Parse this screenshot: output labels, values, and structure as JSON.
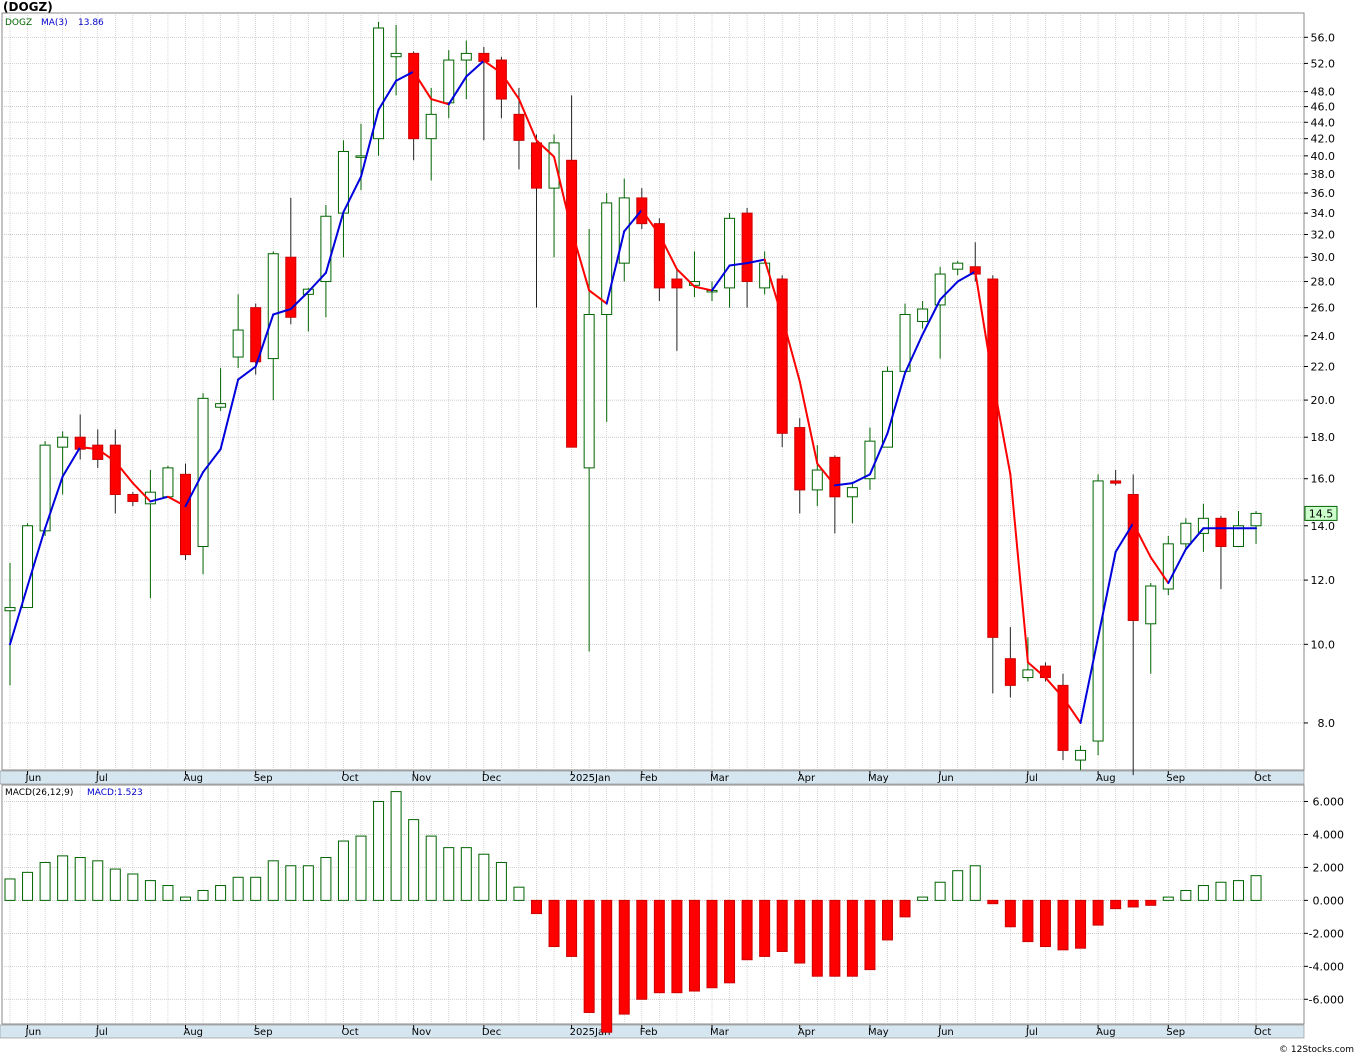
{
  "title": "(DOGZ)",
  "credit": "© 12Stocks.com",
  "price_legend": {
    "symbol": "DOGZ",
    "ma_label": "MA(3)",
    "ma_value": "13.86"
  },
  "macd_legend": {
    "label": "MACD(26,12,9)",
    "value_label": "MACD:1.523"
  },
  "last_price_label": "14.5",
  "colors": {
    "up": "#006400",
    "down": "#ff0000",
    "ma_up": "#0000dd",
    "ma_down": "#ff0000",
    "axis_band": "#d6e6f0",
    "grid": "#bbbbbb"
  },
  "chart_data": [
    {
      "type": "candlestick",
      "scale": "log",
      "y_ticks": [
        "56.0",
        "52.0",
        "48.0",
        "46.0",
        "44.0",
        "42.0",
        "40.0",
        "38.0",
        "36.0",
        "34.0",
        "32.0",
        "30.0",
        "28.0",
        "26.0",
        "24.0",
        "22.0",
        "20.0",
        "18.0",
        "16.0",
        "14.0",
        "12.0",
        "10.0",
        "8.0"
      ],
      "ylim": [
        7.0,
        60.0
      ],
      "x_labels": [
        "Jun",
        "Jul",
        "Aug",
        "Sep",
        "Oct",
        "Nov",
        "Dec",
        "2025Jan",
        "Feb",
        "Mar",
        "Apr",
        "May",
        "Jun",
        "Jul",
        "Aug",
        "Sep",
        "Oct"
      ],
      "x_label_weeks": [
        1,
        5,
        10,
        14,
        19,
        23,
        27,
        32,
        36,
        40,
        45,
        49,
        53,
        58,
        62,
        66,
        71
      ],
      "grid": true,
      "candles": [
        {
          "o": 11.0,
          "h": 12.6,
          "l": 8.9,
          "c": 11.1
        },
        {
          "o": 11.1,
          "h": 14.1,
          "l": 11.1,
          "c": 14.0
        },
        {
          "o": 13.8,
          "h": 17.8,
          "l": 13.6,
          "c": 17.6
        },
        {
          "o": 17.5,
          "h": 18.3,
          "l": 15.3,
          "c": 18.0
        },
        {
          "o": 18.0,
          "h": 19.2,
          "l": 16.9,
          "c": 17.4
        },
        {
          "o": 17.6,
          "h": 18.4,
          "l": 16.5,
          "c": 16.9
        },
        {
          "o": 17.6,
          "h": 18.4,
          "l": 14.5,
          "c": 15.3
        },
        {
          "o": 15.3,
          "h": 15.4,
          "l": 14.8,
          "c": 15.0
        },
        {
          "o": 14.9,
          "h": 16.4,
          "l": 11.4,
          "c": 15.4
        },
        {
          "o": 15.2,
          "h": 16.6,
          "l": 15.2,
          "c": 16.5
        },
        {
          "o": 16.2,
          "h": 16.7,
          "l": 12.7,
          "c": 12.9
        },
        {
          "o": 13.2,
          "h": 20.4,
          "l": 12.2,
          "c": 20.1
        },
        {
          "o": 19.6,
          "h": 21.9,
          "l": 19.4,
          "c": 19.8
        },
        {
          "o": 22.6,
          "h": 27.0,
          "l": 21.9,
          "c": 24.4
        },
        {
          "o": 26.0,
          "h": 26.3,
          "l": 21.5,
          "c": 22.3
        },
        {
          "o": 22.5,
          "h": 30.5,
          "l": 20.0,
          "c": 30.3
        },
        {
          "o": 30.0,
          "h": 35.5,
          "l": 24.8,
          "c": 25.3
        },
        {
          "o": 27.0,
          "h": 27.5,
          "l": 24.3,
          "c": 27.4
        },
        {
          "o": 28.0,
          "h": 34.8,
          "l": 25.3,
          "c": 33.7
        },
        {
          "o": 34.0,
          "h": 41.8,
          "l": 30.0,
          "c": 40.5
        },
        {
          "o": 40.0,
          "h": 43.8,
          "l": 36.3,
          "c": 40.0
        },
        {
          "o": 42.0,
          "h": 58.5,
          "l": 40.0,
          "c": 57.5
        },
        {
          "o": 53.0,
          "h": 58.0,
          "l": 47.5,
          "c": 53.5
        },
        {
          "o": 53.5,
          "h": 53.8,
          "l": 39.5,
          "c": 42.0
        },
        {
          "o": 42.0,
          "h": 48.5,
          "l": 37.3,
          "c": 45.0
        },
        {
          "o": 46.5,
          "h": 54.0,
          "l": 44.5,
          "c": 52.5
        },
        {
          "o": 52.5,
          "h": 55.5,
          "l": 47.0,
          "c": 53.5
        },
        {
          "o": 53.5,
          "h": 54.5,
          "l": 41.8,
          "c": 52.3
        },
        {
          "o": 52.5,
          "h": 53.0,
          "l": 44.5,
          "c": 47.0
        },
        {
          "o": 45.0,
          "h": 48.5,
          "l": 38.5,
          "c": 41.8
        },
        {
          "o": 41.5,
          "h": 42.5,
          "l": 26.0,
          "c": 36.5
        },
        {
          "o": 36.5,
          "h": 42.5,
          "l": 30.0,
          "c": 41.5
        },
        {
          "o": 39.5,
          "h": 47.5,
          "l": 17.5,
          "c": 17.5
        },
        {
          "o": 16.5,
          "h": 32.5,
          "l": 9.8,
          "c": 25.5
        },
        {
          "o": 25.5,
          "h": 36.0,
          "l": 18.8,
          "c": 35.0
        },
        {
          "o": 29.5,
          "h": 37.5,
          "l": 28.0,
          "c": 35.5
        },
        {
          "o": 35.5,
          "h": 36.5,
          "l": 32.5,
          "c": 33.0
        },
        {
          "o": 33.0,
          "h": 33.5,
          "l": 26.5,
          "c": 27.5
        },
        {
          "o": 28.2,
          "h": 29.0,
          "l": 23.0,
          "c": 27.5
        },
        {
          "o": 27.7,
          "h": 30.5,
          "l": 26.8,
          "c": 28.0
        },
        {
          "o": 27.3,
          "h": 28.0,
          "l": 26.5,
          "c": 27.3
        },
        {
          "o": 27.5,
          "h": 34.0,
          "l": 26.0,
          "c": 33.5
        },
        {
          "o": 34.0,
          "h": 34.5,
          "l": 26.0,
          "c": 28.0
        },
        {
          "o": 27.5,
          "h": 30.5,
          "l": 27.0,
          "c": 29.5
        },
        {
          "o": 28.2,
          "h": 28.5,
          "l": 17.5,
          "c": 18.2
        },
        {
          "o": 18.5,
          "h": 19.0,
          "l": 14.5,
          "c": 15.5
        },
        {
          "o": 15.5,
          "h": 17.6,
          "l": 14.8,
          "c": 16.4
        },
        {
          "o": 17.0,
          "h": 17.1,
          "l": 13.7,
          "c": 15.2
        },
        {
          "o": 15.2,
          "h": 15.8,
          "l": 14.1,
          "c": 15.6
        },
        {
          "o": 16.0,
          "h": 18.5,
          "l": 15.5,
          "c": 17.8
        },
        {
          "o": 17.5,
          "h": 22.0,
          "l": 17.5,
          "c": 21.7
        },
        {
          "o": 21.7,
          "h": 26.3,
          "l": 21.5,
          "c": 25.5
        },
        {
          "o": 25.0,
          "h": 26.5,
          "l": 24.5,
          "c": 25.9
        },
        {
          "o": 26.2,
          "h": 29.2,
          "l": 22.5,
          "c": 28.6
        },
        {
          "o": 29.0,
          "h": 29.7,
          "l": 28.5,
          "c": 29.5
        },
        {
          "o": 29.2,
          "h": 31.3,
          "l": 28.0,
          "c": 28.6
        },
        {
          "o": 28.2,
          "h": 28.5,
          "l": 8.7,
          "c": 10.2
        },
        {
          "o": 9.6,
          "h": 10.5,
          "l": 8.6,
          "c": 8.9
        },
        {
          "o": 9.1,
          "h": 10.2,
          "l": 9.0,
          "c": 9.3
        },
        {
          "o": 9.4,
          "h": 9.5,
          "l": 9.0,
          "c": 9.1
        },
        {
          "o": 8.9,
          "h": 9.2,
          "l": 7.2,
          "c": 7.4
        },
        {
          "o": 7.2,
          "h": 7.5,
          "l": 7.0,
          "c": 7.4
        },
        {
          "o": 7.6,
          "h": 16.2,
          "l": 7.3,
          "c": 15.9
        },
        {
          "o": 15.9,
          "h": 16.4,
          "l": 15.7,
          "c": 15.8
        },
        {
          "o": 15.3,
          "h": 16.2,
          "l": 6.9,
          "c": 10.7
        },
        {
          "o": 10.6,
          "h": 11.9,
          "l": 9.2,
          "c": 11.8
        },
        {
          "o": 11.7,
          "h": 13.6,
          "l": 11.5,
          "c": 13.3
        },
        {
          "o": 13.3,
          "h": 14.3,
          "l": 13.1,
          "c": 14.1
        },
        {
          "o": 13.7,
          "h": 14.9,
          "l": 13.0,
          "c": 14.3
        },
        {
          "o": 14.3,
          "h": 14.4,
          "l": 11.7,
          "c": 13.2
        },
        {
          "o": 13.2,
          "h": 14.6,
          "l": 13.2,
          "c": 14.0
        },
        {
          "o": 14.0,
          "h": 14.6,
          "l": 13.3,
          "c": 14.5
        }
      ],
      "ma3": [
        10.0,
        11.8,
        13.9,
        16.1,
        17.5,
        17.4,
        16.8,
        15.8,
        15.0,
        15.2,
        14.8,
        16.3,
        17.4,
        21.2,
        22.0,
        25.5,
        25.9,
        27.2,
        28.7,
        34.1,
        37.7,
        45.6,
        49.5,
        50.8,
        47.0,
        46.3,
        50.1,
        52.4,
        50.6,
        47.0,
        41.8,
        39.9,
        32.4,
        27.3,
        26.3,
        32.3,
        34.3,
        32.0,
        29.0,
        27.6,
        27.3,
        29.3,
        29.5,
        29.8,
        25.3,
        21.1,
        16.7,
        15.7,
        15.8,
        16.2,
        18.2,
        21.6,
        24.1,
        26.6,
        28.0,
        28.8,
        21.2,
        16.2,
        9.5,
        9.1,
        8.6,
        8.0,
        10.2,
        13.0,
        14.1,
        12.8,
        11.9,
        13.1,
        13.9,
        13.9,
        13.9,
        13.9
      ]
    },
    {
      "type": "bar",
      "name": "MACD(26,12,9)",
      "y_ticks": [
        "6.000",
        "4.000",
        "2.000",
        "0.000",
        "-2.000",
        "-4.000",
        "-6.000"
      ],
      "ylim": [
        -7.5,
        7.0
      ],
      "grid": true,
      "values": [
        1.3,
        1.7,
        2.3,
        2.7,
        2.6,
        2.4,
        1.9,
        1.6,
        1.2,
        0.9,
        0.2,
        0.6,
        0.9,
        1.4,
        1.4,
        2.4,
        2.1,
        2.1,
        2.6,
        3.6,
        3.9,
        6.0,
        6.6,
        4.9,
        3.9,
        3.2,
        3.2,
        2.8,
        2.3,
        0.8,
        -0.8,
        -2.8,
        -3.4,
        -6.8,
        -8.0,
        -6.9,
        -6.0,
        -5.6,
        -5.6,
        -5.5,
        -5.3,
        -5.0,
        -3.6,
        -3.4,
        -3.1,
        -3.8,
        -4.6,
        -4.6,
        -4.6,
        -4.2,
        -2.4,
        -1.0,
        0.2,
        1.1,
        1.8,
        2.1,
        -0.2,
        -1.6,
        -2.5,
        -2.8,
        -3.0,
        -2.9,
        -1.5,
        -0.5,
        -0.4,
        -0.3,
        0.2,
        0.6,
        0.9,
        1.1,
        1.2,
        1.5
      ]
    }
  ]
}
